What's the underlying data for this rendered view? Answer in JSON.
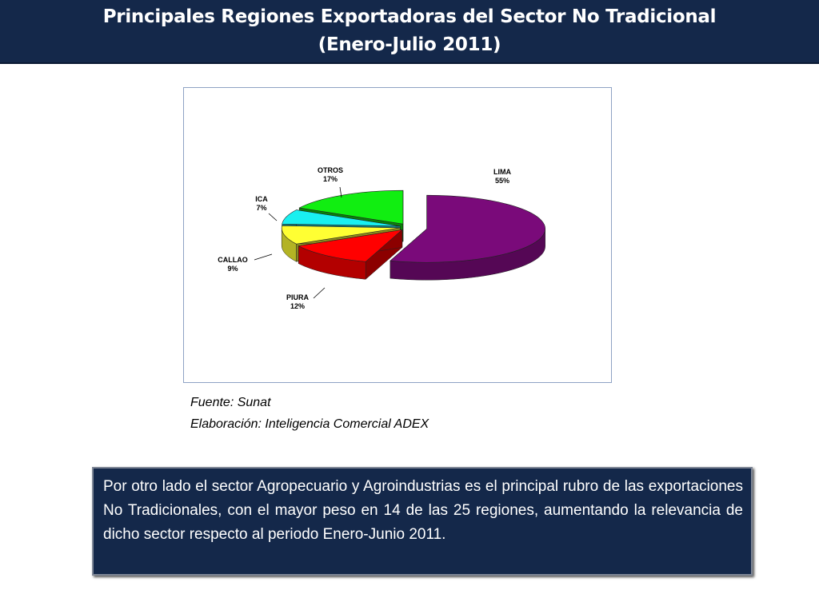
{
  "header": {
    "title_line1": "Principales Regiones Exportadoras del Sector No Tradicional",
    "title_line2": "(Enero-Julio 2011)"
  },
  "chart_data": {
    "type": "pie",
    "title": "",
    "slices": [
      {
        "name": "LIMA",
        "label": "55%",
        "value": 55,
        "color": "#7a0a7a"
      },
      {
        "name": "PIURA",
        "label": "12%",
        "value": 12,
        "color": "#ff0000"
      },
      {
        "name": "CALLAO",
        "label": "9%",
        "value": 9,
        "color": "#ffff33"
      },
      {
        "name": "ICA",
        "label": "7%",
        "value": 7,
        "color": "#19f0f0"
      },
      {
        "name": "OTROS",
        "label": "17%",
        "value": 17,
        "color": "#11ee11"
      }
    ]
  },
  "source": {
    "line1": "Fuente: Sunat",
    "line2": "Elaboración: Inteligencia Comercial ADEX"
  },
  "note": {
    "text": "Por otro lado el  sector Agropecuario y Agroindustrias es el principal rubro de las exportaciones No Tradicionales, con el mayor peso en 14 de las 25 regiones, aumentando la relevancia de dicho sector respecto al periodo Enero-Junio 2011."
  }
}
